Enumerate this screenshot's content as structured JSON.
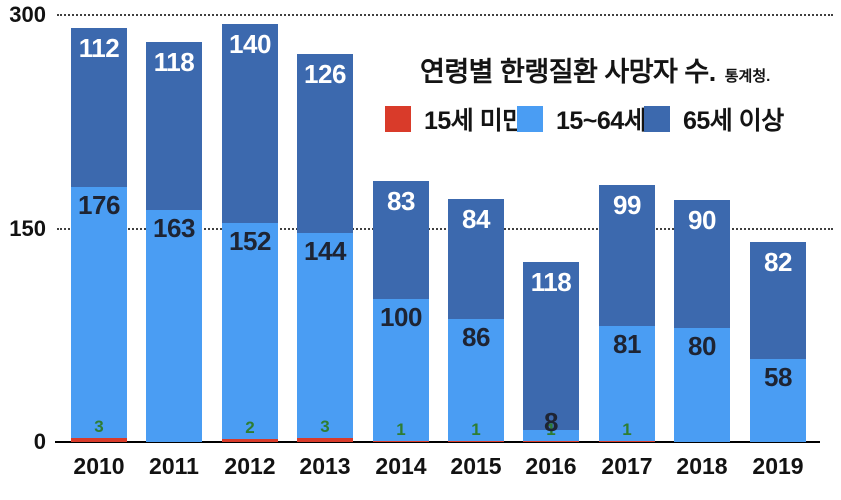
{
  "chart_data": {
    "type": "bar",
    "stacked": true,
    "title": "연령별 한랭질환 사망자 수.",
    "source": "통계청.",
    "categories": [
      "2010",
      "2011",
      "2012",
      "2013",
      "2014",
      "2015",
      "2016",
      "2017",
      "2018",
      "2019"
    ],
    "series": [
      {
        "key": "under-15",
        "name": "15세 미만",
        "color": "#d93b2a",
        "label_color": "#2e7d32",
        "values": [
          3,
          0,
          2,
          3,
          1,
          1,
          1,
          1,
          0,
          0
        ],
        "value_labels": [
          "3",
          "",
          "2",
          "3",
          "1",
          "1",
          "1",
          "1",
          "",
          ""
        ]
      },
      {
        "key": "15-64",
        "name": "15~64세",
        "color": "#4a9df3",
        "label_color": "#1e2433",
        "values": [
          176,
          163,
          152,
          144,
          100,
          86,
          8,
          81,
          80,
          58
        ],
        "value_labels": [
          "176",
          "163",
          "152",
          "144",
          "100",
          "86",
          "8",
          "81",
          "80",
          "58"
        ]
      },
      {
        "key": "65-plus",
        "name": "65세 이상",
        "color": "#3c69ae",
        "label_color": "#ffffff",
        "values": [
          112,
          118,
          140,
          126,
          83,
          84,
          118,
          99,
          90,
          82
        ],
        "value_labels": [
          "112",
          "118",
          "140",
          "126",
          "83",
          "84",
          "118",
          "99",
          "90",
          "82"
        ]
      }
    ],
    "ylim": [
      0,
      300
    ],
    "yticks": [
      0,
      150,
      300
    ],
    "ytick_labels": [
      "0",
      "150",
      "300"
    ],
    "grid": "horizontal dotted lines at 150 and 300",
    "legend_position": "top-right of plot, in a row"
  }
}
